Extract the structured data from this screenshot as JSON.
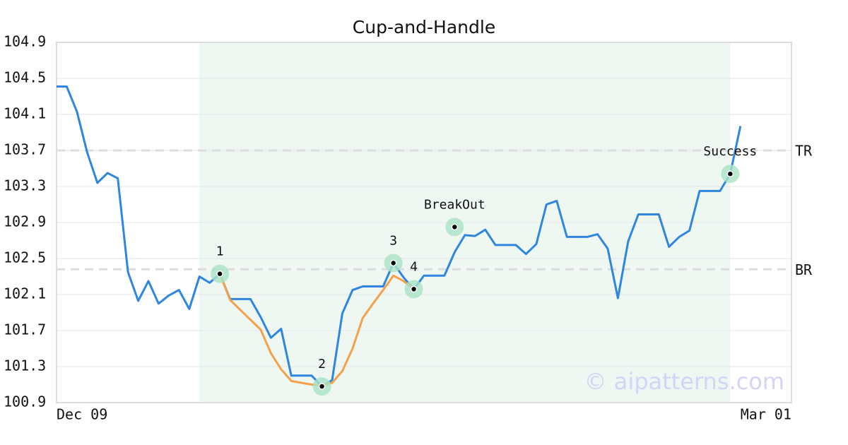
{
  "chart_data": {
    "type": "line",
    "title": "Cup-and-Handle",
    "categories": [
      "Dec 09",
      null,
      null,
      null,
      null,
      null,
      null,
      null,
      null,
      null,
      null,
      null,
      null,
      null,
      null,
      null,
      null,
      null,
      null,
      null,
      null,
      null,
      null,
      null,
      null,
      null,
      null,
      null,
      null,
      null,
      null,
      null,
      null,
      null,
      null,
      null,
      null,
      null,
      null,
      null,
      null,
      null,
      null,
      null,
      null,
      null,
      null,
      null,
      null,
      null,
      null,
      null,
      null,
      null,
      null,
      null,
      null,
      null,
      null,
      null,
      null,
      null,
      null,
      null,
      null,
      null,
      null,
      null,
      null,
      null,
      null,
      null,
      "Mar 01"
    ],
    "series": [
      {
        "color": "#2e86de",
        "values": [
          104.41,
          104.41,
          104.13,
          103.68,
          103.34,
          103.45,
          103.39,
          102.35,
          102.03,
          102.25,
          102.0,
          102.09,
          102.15,
          101.94,
          102.3,
          102.23,
          102.33,
          102.05,
          102.05,
          102.05,
          101.85,
          101.62,
          101.72,
          101.2,
          101.2,
          101.2,
          101.08,
          101.15,
          101.89,
          102.15,
          102.19,
          102.19,
          102.19,
          102.45,
          102.29,
          102.16,
          102.31,
          102.31,
          102.31,
          102.57,
          102.76,
          102.75,
          102.82,
          102.65,
          102.65,
          102.65,
          102.55,
          102.66,
          103.1,
          103.14,
          102.74,
          102.74,
          102.74,
          102.77,
          102.61,
          102.06,
          102.69,
          102.99,
          102.99,
          102.99,
          102.63,
          102.74,
          102.81,
          103.25,
          103.25,
          103.25,
          103.44,
          103.97,
          null,
          null,
          null,
          null,
          null
        ]
      },
      {
        "color": "#f5a04a",
        "values": [
          null,
          null,
          null,
          null,
          null,
          null,
          null,
          null,
          null,
          null,
          null,
          null,
          null,
          null,
          null,
          null,
          102.33,
          102.04,
          101.93,
          101.82,
          101.71,
          101.45,
          101.27,
          101.14,
          101.12,
          101.1,
          101.09,
          101.12,
          101.25,
          101.5,
          101.84,
          102.0,
          102.15,
          102.31,
          102.25,
          102.16,
          null,
          null,
          null,
          null,
          null,
          null,
          null,
          null,
          null,
          null,
          null,
          null,
          null,
          null,
          null,
          null,
          null,
          null,
          null,
          null,
          null,
          null,
          null,
          null,
          null,
          null,
          null,
          null,
          null,
          null,
          null,
          null,
          null,
          null,
          null,
          null,
          null
        ]
      }
    ],
    "ylim": [
      100.9,
      104.9
    ],
    "yticks": [
      100.9,
      101.3,
      101.7,
      102.1,
      102.5,
      102.9,
      103.3,
      103.7,
      104.1,
      104.5,
      104.9
    ],
    "grid": true,
    "hlines": [
      {
        "label": "TR",
        "value": 103.7
      },
      {
        "label": "BR",
        "value": 102.38
      }
    ],
    "shaded_range": [
      14,
      66
    ],
    "annotations": [
      {
        "label": "1",
        "x": 16,
        "y": 102.33
      },
      {
        "label": "2",
        "x": 26,
        "y": 101.08
      },
      {
        "label": "3",
        "x": 33,
        "y": 102.45
      },
      {
        "label": "4",
        "x": 35,
        "y": 102.16
      },
      {
        "label": "BreakOut",
        "x": 39,
        "y": 102.85
      },
      {
        "label": "Success",
        "x": 66,
        "y": 103.44
      }
    ],
    "watermark": "© aipatterns.com"
  }
}
